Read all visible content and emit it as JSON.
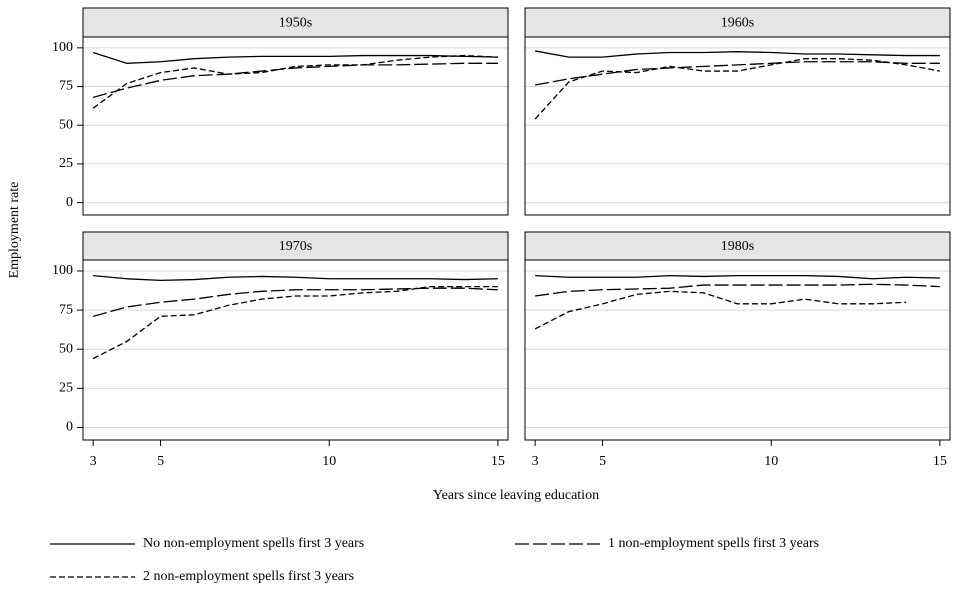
{
  "chart_data": {
    "type": "line",
    "ylabel": "Employment rate",
    "xlabel": "Years since leaving education",
    "x": [
      3,
      4,
      5,
      6,
      7,
      8,
      9,
      10,
      11,
      12,
      13,
      14,
      15
    ],
    "xlim": [
      2.7,
      15.3
    ],
    "xticks": [
      3,
      5,
      10,
      15
    ],
    "ylim": [
      -8,
      107
    ],
    "yticks": [
      0,
      25,
      50,
      75,
      100
    ],
    "grid": true,
    "series": [
      {
        "name": "No non-employment spells first 3 years",
        "color": "#000000",
        "dash": "solid"
      },
      {
        "name": "1 non-employment spells first 3 years",
        "color": "#000000",
        "dash": "long-dash"
      },
      {
        "name": "2 non-employment spells first 3 years",
        "color": "#000000",
        "dash": "short-dash"
      }
    ],
    "panels": [
      {
        "title": "1950s",
        "values": [
          [
            97,
            90,
            91,
            93,
            94,
            94.5,
            94.5,
            94.5,
            95,
            95,
            95,
            94.5,
            94
          ],
          [
            68,
            74,
            79,
            82,
            83,
            85,
            87,
            88,
            89,
            89,
            89.5,
            90,
            90
          ],
          [
            61,
            77,
            84,
            87,
            83,
            84,
            88,
            89,
            89,
            92,
            94,
            95,
            94
          ]
        ]
      },
      {
        "title": "1960s",
        "values": [
          [
            98,
            94,
            94,
            96,
            97,
            97,
            97.5,
            97,
            96,
            96,
            95.5,
            95,
            95
          ],
          [
            76,
            80,
            83,
            86,
            87,
            88,
            89,
            90,
            91,
            91,
            91,
            90,
            90
          ],
          [
            54,
            78,
            85,
            84,
            88,
            85,
            85,
            89,
            93,
            93,
            92,
            89,
            85
          ]
        ]
      },
      {
        "title": "1970s",
        "values": [
          [
            97,
            95,
            94,
            94.5,
            96,
            96.5,
            96,
            95,
            95,
            95,
            95,
            94.5,
            95
          ],
          [
            71,
            77,
            80,
            82,
            85,
            87,
            88,
            88,
            88,
            88.5,
            89,
            89,
            88
          ],
          [
            44,
            55,
            71,
            72,
            78,
            82,
            84,
            84,
            86,
            87,
            90,
            90,
            90
          ]
        ]
      },
      {
        "title": "1980s",
        "values": [
          [
            97,
            96,
            96,
            96,
            97,
            96.5,
            97,
            97,
            97,
            96.5,
            95,
            96,
            95.5
          ],
          [
            84,
            87,
            88,
            88.5,
            89,
            91,
            91,
            91,
            91,
            91,
            91.5,
            91,
            90
          ],
          [
            63,
            74,
            79,
            85,
            87,
            86,
            79,
            79,
            82,
            79,
            79,
            80,
            null
          ]
        ]
      }
    ]
  }
}
